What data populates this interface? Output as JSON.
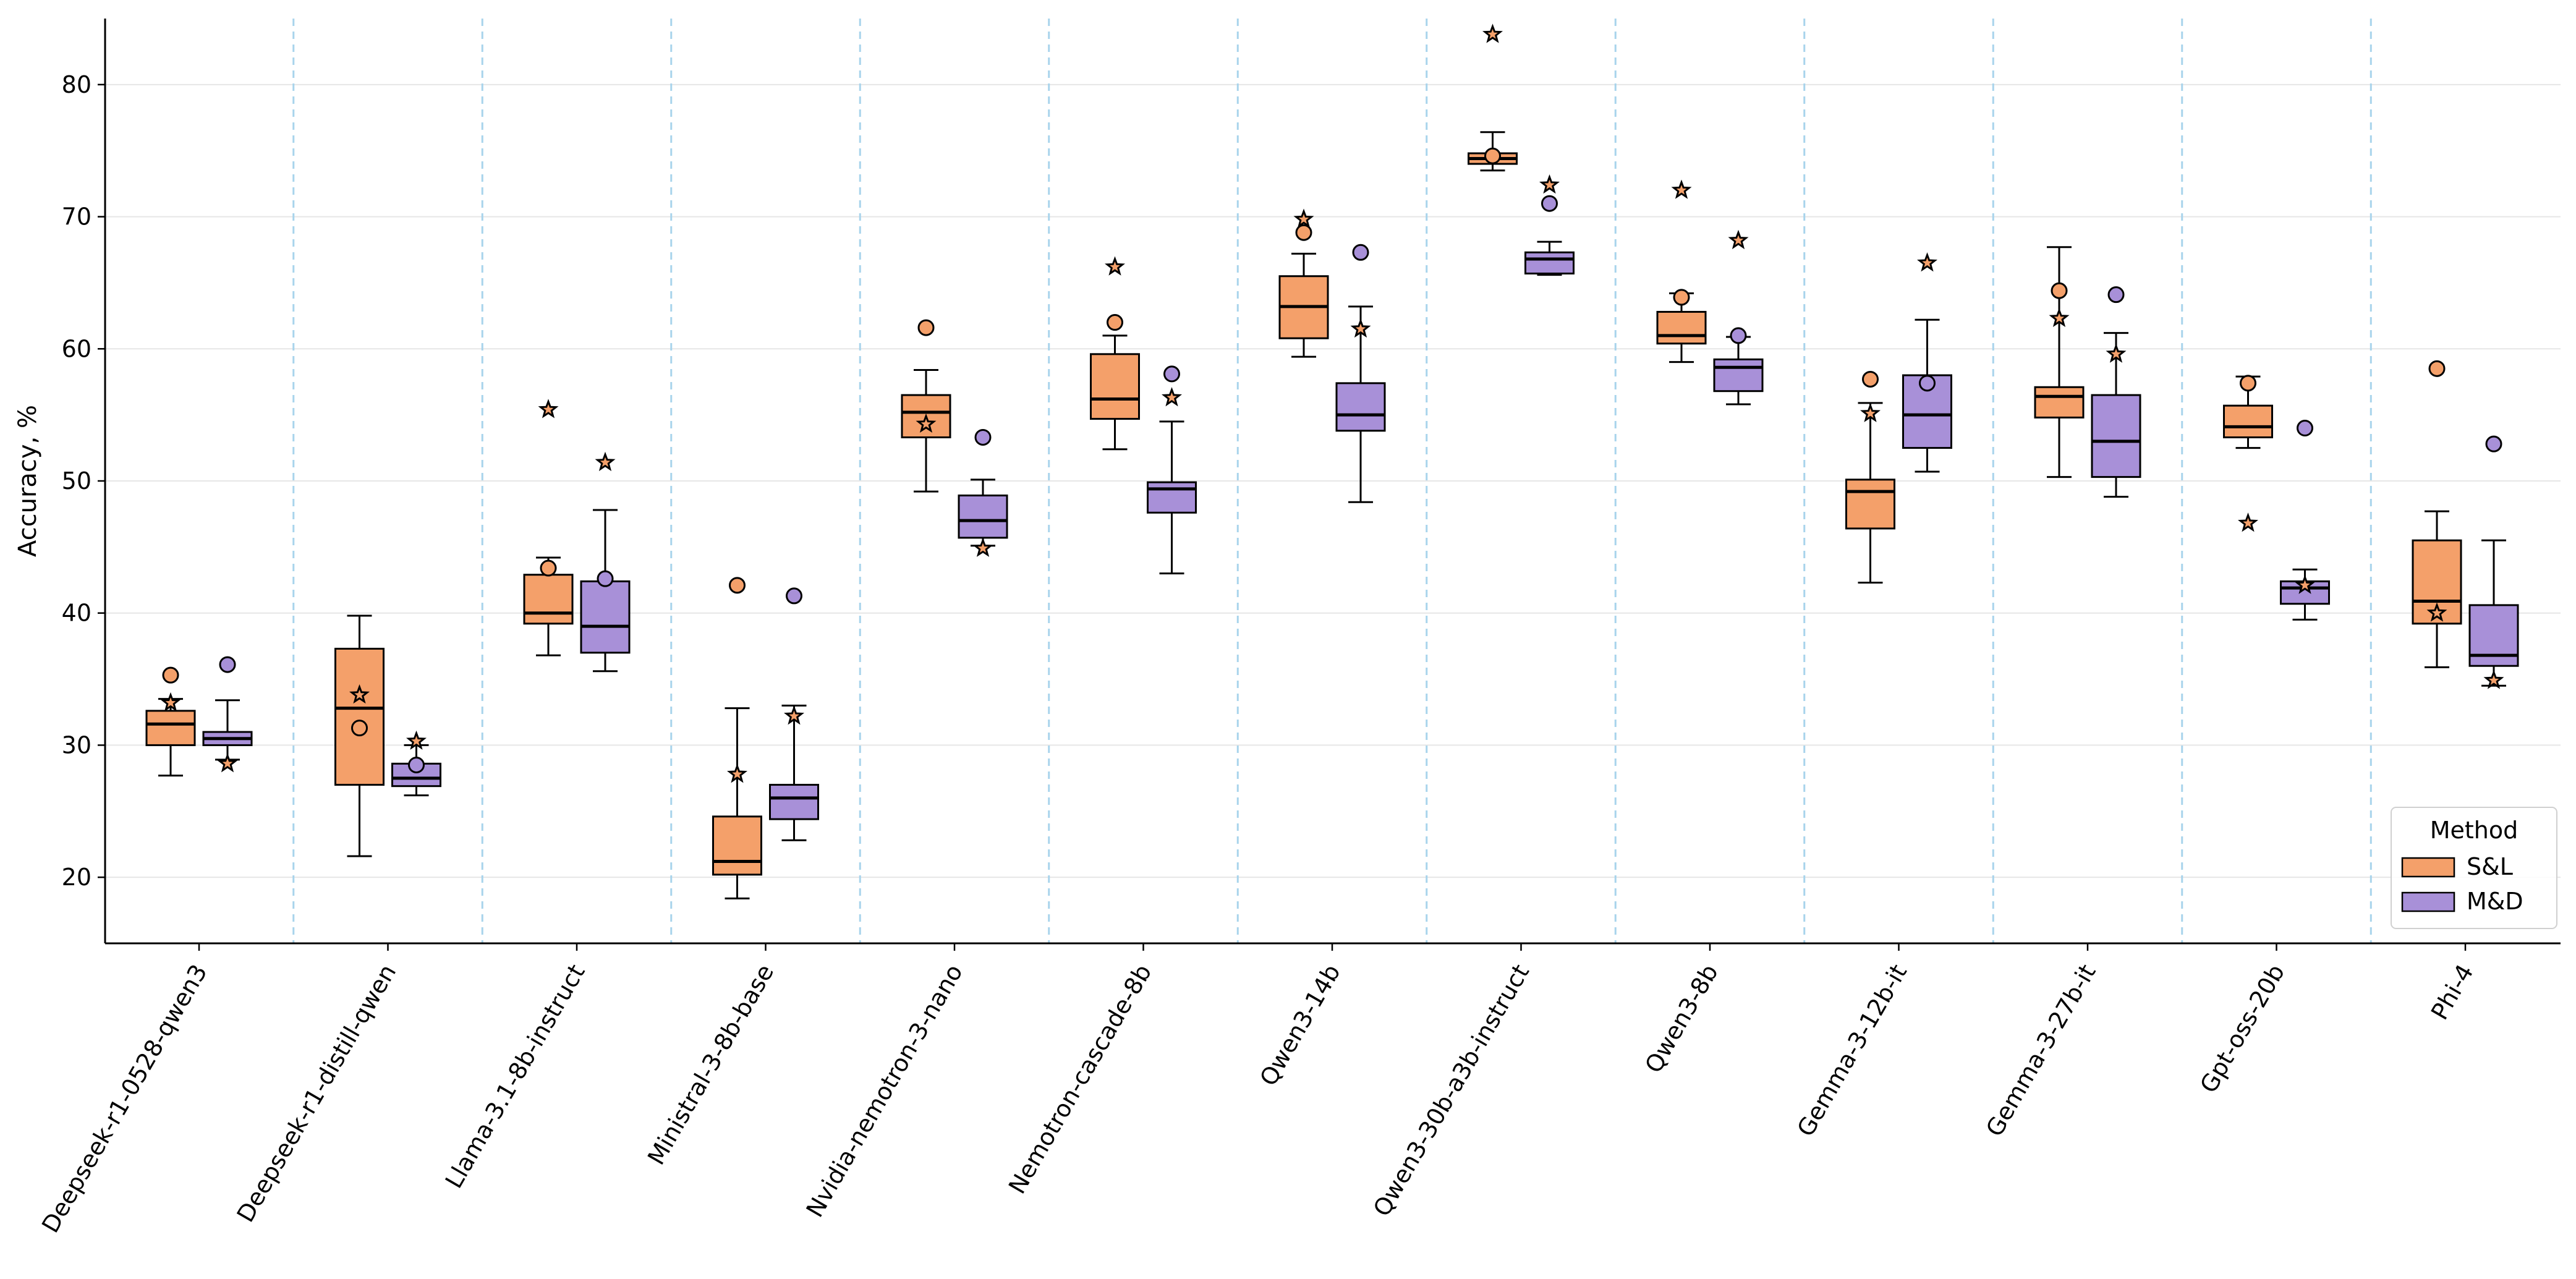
{
  "chart_data": {
    "type": "box",
    "ylabel": "Accuracy, %",
    "xlabel": "",
    "ylim": [
      15,
      85
    ],
    "yticks": [
      20,
      30,
      40,
      50,
      60,
      70,
      80
    ],
    "grid": "horizontal solid, vertical dashed separators between groups",
    "legend": {
      "title": "Method",
      "position": "bottom-right",
      "entries": [
        "S&L",
        "M&D"
      ]
    },
    "colors": {
      "S&L": "#f4a06a",
      "M&D": "#a890d8",
      "separator": "#a8d4ec",
      "grid": "#e6e6e6"
    },
    "markers": {
      "circle": "outlier/extra point",
      "star": "reference point"
    },
    "categories": [
      "Deepseek-r1-0528-qwen3",
      "Deepseek-r1-distill-qwen",
      "Llama-3.1-8b-instruct",
      "Ministral-3-8b-base",
      "Nvidia-nemotron-3-nano",
      "Nemotron-cascade-8b",
      "Qwen3-14b",
      "Qwen3-30b-a3b-instruct",
      "Qwen3-8b",
      "Gemma-3-12b-it",
      "Gemma-3-27b-it",
      "Gpt-oss-20b",
      "Phi-4"
    ],
    "series": [
      {
        "name": "S&L",
        "boxes": [
          {
            "wlo": 27.7,
            "q1": 30.0,
            "med": 31.6,
            "q3": 32.6,
            "whi": 33.5,
            "circle": 35.3,
            "star": 33.2
          },
          {
            "wlo": 21.6,
            "q1": 27.0,
            "med": 32.8,
            "q3": 37.3,
            "whi": 39.8,
            "circle": 31.3,
            "star": 33.8
          },
          {
            "wlo": 36.8,
            "q1": 39.2,
            "med": 40.0,
            "q3": 42.9,
            "whi": 44.2,
            "circle": 43.4,
            "star": 55.4
          },
          {
            "wlo": 18.4,
            "q1": 20.2,
            "med": 21.2,
            "q3": 24.6,
            "whi": 32.8,
            "circle": 42.1,
            "star": 27.8
          },
          {
            "wlo": 49.2,
            "q1": 53.3,
            "med": 55.2,
            "q3": 56.5,
            "whi": 58.4,
            "circle": 61.6,
            "star": 54.3
          },
          {
            "wlo": 52.4,
            "q1": 54.7,
            "med": 56.2,
            "q3": 59.6,
            "whi": 61.0,
            "circle": 62.0,
            "star": 66.2
          },
          {
            "wlo": 59.4,
            "q1": 60.8,
            "med": 63.2,
            "q3": 65.5,
            "whi": 67.2,
            "circle": 68.8,
            "star": 69.8
          },
          {
            "wlo": 73.5,
            "q1": 74.0,
            "med": 74.4,
            "q3": 74.8,
            "whi": 76.4,
            "circle": 74.6,
            "star": 83.8
          },
          {
            "wlo": 59.0,
            "q1": 60.4,
            "med": 61.0,
            "q3": 62.8,
            "whi": 64.2,
            "circle": 63.9,
            "star": 72.0
          },
          {
            "wlo": 42.3,
            "q1": 46.4,
            "med": 49.2,
            "q3": 50.1,
            "whi": 55.9,
            "circle": 57.7,
            "star": 55.1
          },
          {
            "wlo": 50.3,
            "q1": 54.8,
            "med": 56.4,
            "q3": 57.1,
            "whi": 67.7,
            "circle": 64.4,
            "star": 62.3
          },
          {
            "wlo": 52.5,
            "q1": 53.3,
            "med": 54.1,
            "q3": 55.7,
            "whi": 57.9,
            "circle": 57.4,
            "star": 46.8
          },
          {
            "wlo": 35.9,
            "q1": 39.2,
            "med": 40.9,
            "q3": 45.5,
            "whi": 47.7,
            "circle": 58.5,
            "star": 40.0
          }
        ]
      },
      {
        "name": "M&D",
        "boxes": [
          {
            "wlo": 28.9,
            "q1": 30.0,
            "med": 30.5,
            "q3": 31.0,
            "whi": 33.4,
            "circle": 36.1,
            "star": 28.6
          },
          {
            "wlo": 26.2,
            "q1": 26.9,
            "med": 27.5,
            "q3": 28.6,
            "whi": 30.0,
            "circle": 28.5,
            "star": 30.3
          },
          {
            "wlo": 35.6,
            "q1": 37.0,
            "med": 39.0,
            "q3": 42.4,
            "whi": 47.8,
            "circle": 42.6,
            "star": 51.4
          },
          {
            "wlo": 22.8,
            "q1": 24.4,
            "med": 26.0,
            "q3": 27.0,
            "whi": 33.0,
            "circle": 41.3,
            "star": 32.2
          },
          {
            "wlo": 45.1,
            "q1": 45.7,
            "med": 47.0,
            "q3": 48.9,
            "whi": 50.1,
            "circle": 53.3,
            "star": 44.9
          },
          {
            "wlo": 43.0,
            "q1": 47.6,
            "med": 49.4,
            "q3": 49.9,
            "whi": 54.5,
            "circle": 58.1,
            "star": 56.3
          },
          {
            "wlo": 48.4,
            "q1": 53.8,
            "med": 55.0,
            "q3": 57.4,
            "whi": 63.2,
            "circle": 67.3,
            "star": 61.5
          },
          {
            "wlo": 65.6,
            "q1": 65.7,
            "med": 66.8,
            "q3": 67.3,
            "whi": 68.1,
            "circle": 71.0,
            "star": 72.4
          },
          {
            "wlo": 55.8,
            "q1": 56.8,
            "med": 58.6,
            "q3": 59.2,
            "whi": 60.9,
            "circle": 61.0,
            "star": 68.2
          },
          {
            "wlo": 50.7,
            "q1": 52.5,
            "med": 55.0,
            "q3": 58.0,
            "whi": 62.2,
            "circle": 57.4,
            "star": 66.5
          },
          {
            "wlo": 48.8,
            "q1": 50.3,
            "med": 53.0,
            "q3": 56.5,
            "whi": 61.2,
            "circle": 64.1,
            "star": 59.6
          },
          {
            "wlo": 39.5,
            "q1": 40.7,
            "med": 41.9,
            "q3": 42.4,
            "whi": 43.3,
            "circle": 54.0,
            "star": 42.1
          },
          {
            "wlo": 34.5,
            "q1": 36.0,
            "med": 36.8,
            "q3": 40.6,
            "whi": 45.5,
            "circle": 52.8,
            "star": 34.9
          }
        ]
      }
    ]
  }
}
